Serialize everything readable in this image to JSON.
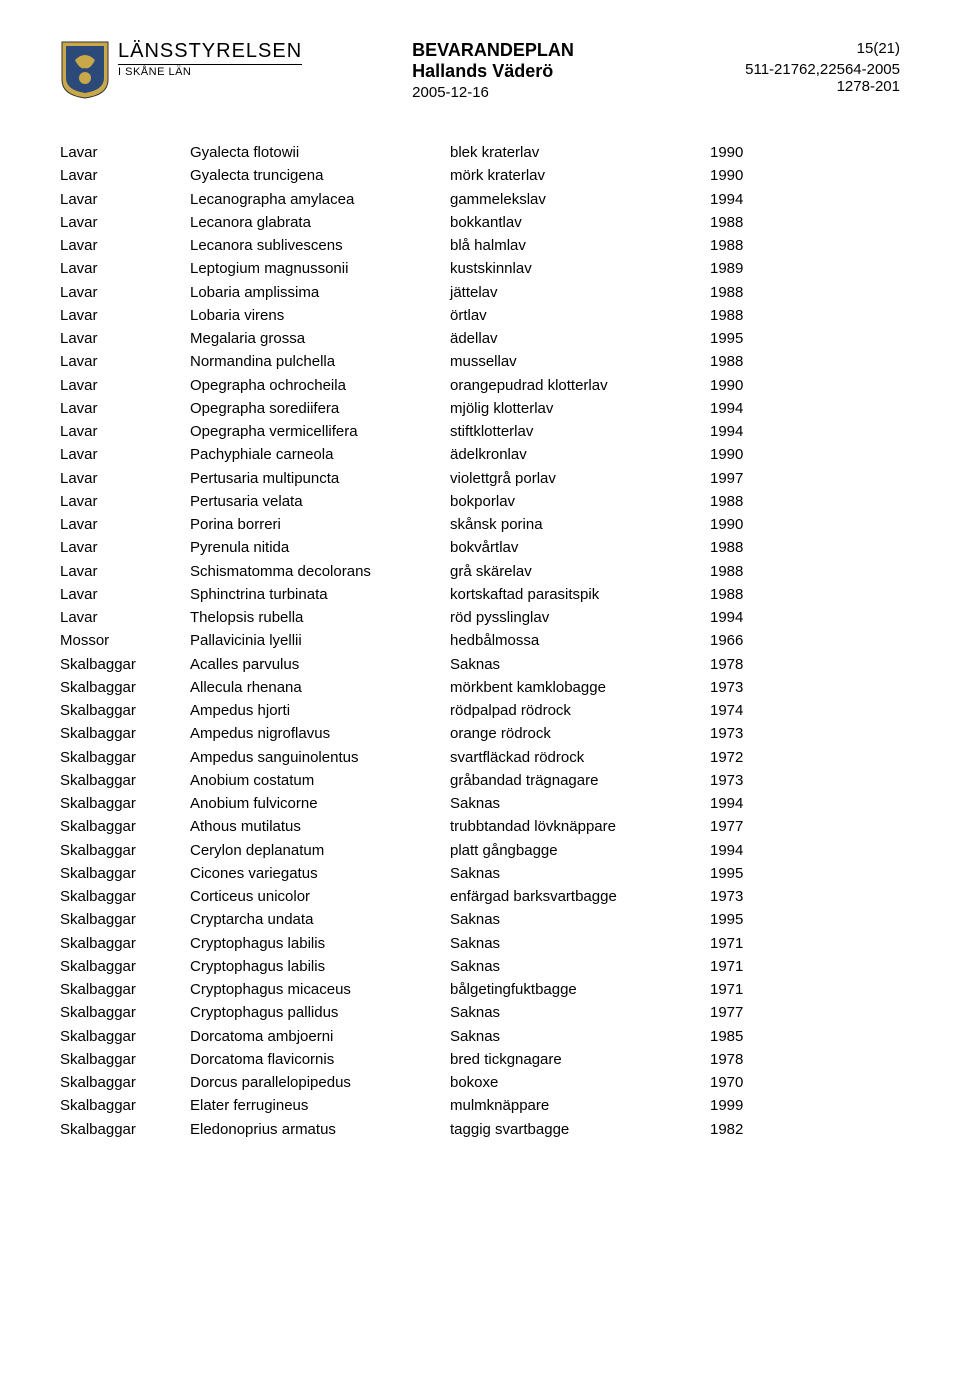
{
  "header": {
    "org_name": "LÄNSSTYRELSEN",
    "org_sub": "I SKÅNE LÄN",
    "doc_title": "BEVARANDEPLAN",
    "doc_subtitle": "Hallands Väderö",
    "doc_date": "2005-12-16",
    "page_num": "15(21)",
    "ref1": "511-21762,22564-2005",
    "ref2": "1278-201"
  },
  "colors": {
    "text": "#000000",
    "bg": "#ffffff",
    "crest_blue": "#2b4a7a",
    "crest_gold": "#c9a84a"
  },
  "rows": [
    {
      "g": "Lavar",
      "sci": "Gyalecta flotowii",
      "sv": "blek kraterlav",
      "y": "1990"
    },
    {
      "g": "Lavar",
      "sci": "Gyalecta truncigena",
      "sv": "mörk kraterlav",
      "y": "1990"
    },
    {
      "g": "Lavar",
      "sci": "Lecanographa amylacea",
      "sv": "gammelekslav",
      "y": "1994"
    },
    {
      "g": "Lavar",
      "sci": "Lecanora glabrata",
      "sv": "bokkantlav",
      "y": "1988"
    },
    {
      "g": "Lavar",
      "sci": "Lecanora sublivescens",
      "sv": "blå halmlav",
      "y": "1988"
    },
    {
      "g": "Lavar",
      "sci": "Leptogium magnussonii",
      "sv": "kustskinnlav",
      "y": "1989"
    },
    {
      "g": "Lavar",
      "sci": "Lobaria amplissima",
      "sv": "jättelav",
      "y": "1988"
    },
    {
      "g": "Lavar",
      "sci": "Lobaria virens",
      "sv": "örtlav",
      "y": "1988"
    },
    {
      "g": "Lavar",
      "sci": "Megalaria grossa",
      "sv": "ädellav",
      "y": "1995"
    },
    {
      "g": "Lavar",
      "sci": "Normandina pulchella",
      "sv": "mussellav",
      "y": "1988"
    },
    {
      "g": "Lavar",
      "sci": "Opegrapha ochrocheila",
      "sv": "orangepudrad klotterlav",
      "y": "1990"
    },
    {
      "g": "Lavar",
      "sci": "Opegrapha sorediifera",
      "sv": "mjölig klotterlav",
      "y": "1994"
    },
    {
      "g": "Lavar",
      "sci": "Opegrapha vermicellifera",
      "sv": "stiftklotterlav",
      "y": "1994"
    },
    {
      "g": "Lavar",
      "sci": "Pachyphiale carneola",
      "sv": "ädelkronlav",
      "y": "1990"
    },
    {
      "g": "Lavar",
      "sci": "Pertusaria multipuncta",
      "sv": "violettgrå porlav",
      "y": "1997"
    },
    {
      "g": "Lavar",
      "sci": "Pertusaria velata",
      "sv": "bokporlav",
      "y": "1988"
    },
    {
      "g": "Lavar",
      "sci": "Porina borreri",
      "sv": "skånsk porina",
      "y": "1990"
    },
    {
      "g": "Lavar",
      "sci": "Pyrenula nitida",
      "sv": "bokvårtlav",
      "y": "1988"
    },
    {
      "g": "Lavar",
      "sci": "Schismatomma decolorans",
      "sv": "grå skärelav",
      "y": "1988"
    },
    {
      "g": "Lavar",
      "sci": "Sphinctrina turbinata",
      "sv": "kortskaftad parasitspik",
      "y": "1988"
    },
    {
      "g": "Lavar",
      "sci": "Thelopsis rubella",
      "sv": "röd pysslinglav",
      "y": "1994"
    },
    {
      "g": "Mossor",
      "sci": "Pallavicinia lyellii",
      "sv": "hedbålmossa",
      "y": "1966"
    },
    {
      "g": "Skalbaggar",
      "sci": "Acalles parvulus",
      "sv": "Saknas",
      "y": "1978"
    },
    {
      "g": "Skalbaggar",
      "sci": "Allecula rhenana",
      "sv": "mörkbent kamklobagge",
      "y": "1973"
    },
    {
      "g": "Skalbaggar",
      "sci": "Ampedus hjorti",
      "sv": "rödpalpad rödrock",
      "y": "1974"
    },
    {
      "g": "Skalbaggar",
      "sci": "Ampedus nigroflavus",
      "sv": "orange rödrock",
      "y": "1973"
    },
    {
      "g": "Skalbaggar",
      "sci": "Ampedus sanguinolentus",
      "sv": "svartfläckad rödrock",
      "y": "1972"
    },
    {
      "g": "Skalbaggar",
      "sci": "Anobium costatum",
      "sv": "gråbandad trägnagare",
      "y": "1973"
    },
    {
      "g": "Skalbaggar",
      "sci": "Anobium fulvicorne",
      "sv": "Saknas",
      "y": "1994"
    },
    {
      "g": "Skalbaggar",
      "sci": "Athous mutilatus",
      "sv": "trubbtandad lövknäppare",
      "y": "1977"
    },
    {
      "g": "Skalbaggar",
      "sci": "Cerylon deplanatum",
      "sv": "platt gångbagge",
      "y": "1994"
    },
    {
      "g": "Skalbaggar",
      "sci": "Cicones variegatus",
      "sv": "Saknas",
      "y": "1995"
    },
    {
      "g": "Skalbaggar",
      "sci": "Corticeus unicolor",
      "sv": "enfärgad barksvartbagge",
      "y": "1973"
    },
    {
      "g": "Skalbaggar",
      "sci": "Cryptarcha undata",
      "sv": "Saknas",
      "y": "1995"
    },
    {
      "g": "Skalbaggar",
      "sci": "Cryptophagus labilis",
      "sv": "Saknas",
      "y": "1971"
    },
    {
      "g": "Skalbaggar",
      "sci": "Cryptophagus labilis",
      "sv": "Saknas",
      "y": "1971"
    },
    {
      "g": "Skalbaggar",
      "sci": "Cryptophagus micaceus",
      "sv": "bålgetingfuktbagge",
      "y": "1971"
    },
    {
      "g": "Skalbaggar",
      "sci": "Cryptophagus pallidus",
      "sv": "Saknas",
      "y": "1977"
    },
    {
      "g": "Skalbaggar",
      "sci": "Dorcatoma ambjoerni",
      "sv": "Saknas",
      "y": "1985"
    },
    {
      "g": "Skalbaggar",
      "sci": "Dorcatoma flavicornis",
      "sv": "bred tickgnagare",
      "y": "1978"
    },
    {
      "g": "Skalbaggar",
      "sci": "Dorcus parallelopipedus",
      "sv": "bokoxe",
      "y": "1970"
    },
    {
      "g": "Skalbaggar",
      "sci": "Elater ferrugineus",
      "sv": "mulmknäppare",
      "y": "1999"
    },
    {
      "g": "Skalbaggar",
      "sci": "Eledonoprius armatus",
      "sv": "taggig svartbagge",
      "y": "1982"
    }
  ]
}
